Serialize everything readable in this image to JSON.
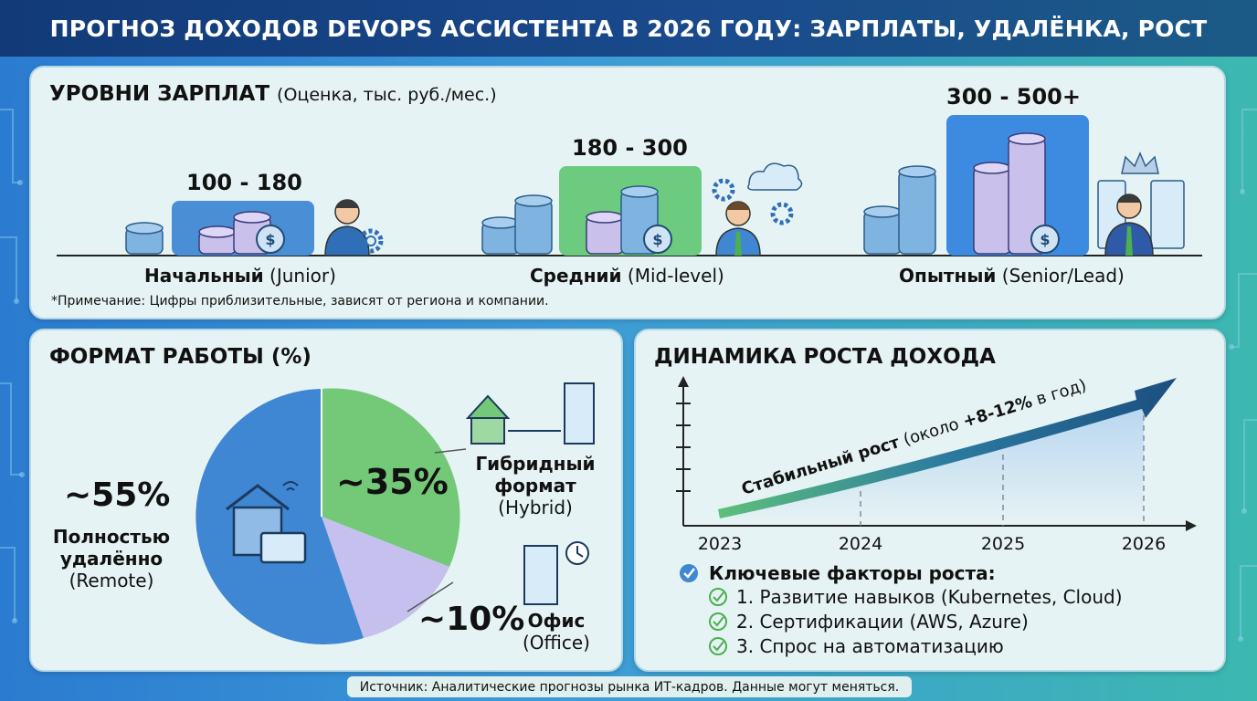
{
  "title": "ПРОГНОЗ ДОХОДОВ DEVOPS АССИСТЕНТА В 2026 ГОДУ: ЗАРПЛАТЫ, УДАЛЁНКА, РОСТ",
  "colors": {
    "junior": "#4a8fd6",
    "mid": "#6ccb7e",
    "senior": "#3d8be0",
    "remote": "#3f86d3",
    "hybrid": "#73c978",
    "office": "#c5c0ee",
    "arrow": "#1c5a80"
  },
  "salary": {
    "title": "УРОВНИ ЗАРПЛАТ",
    "subtitle": "(Оценка, тыс. руб./мес.)",
    "levels": [
      {
        "name": "Начальный",
        "name_en": "(Junior)",
        "range": "100 - 180"
      },
      {
        "name": "Средний",
        "name_en": "(Mid-level)",
        "range": "180 - 300"
      },
      {
        "name": "Опытный",
        "name_en": "(Senior/Lead)",
        "range": "300 - 500+"
      }
    ],
    "note": "*Примечание: Цифры приблизительные, зависят от региона и компании."
  },
  "work_format": {
    "title": "ФОРМАТ РАБОТЫ (%)",
    "remote": {
      "pct": "~55%",
      "line1": "Полностью",
      "line2": "удалённо",
      "en": "(Remote)"
    },
    "hybrid": {
      "pct": "~35%",
      "line1": "Гибридный",
      "line2": "формат",
      "en": "(Hybrid)"
    },
    "office": {
      "pct": "~10%",
      "line1": "Офис",
      "en": "(Office)"
    }
  },
  "growth": {
    "title": "ДИНАМИКА РОСТА ДОХОДА",
    "arrow_bold": "Стабильный рост",
    "arrow_normal": " (около ",
    "arrow_pct": "+8-12%",
    "arrow_tail": " в год)",
    "years": [
      "2023",
      "2024",
      "2025",
      "2026"
    ],
    "factors_title": "Ключевые факторы роста:",
    "factors": [
      "1. Развитие навыков (Kubernetes, Cloud)",
      "2. Сертификации (AWS, Azure)",
      "3. Спрос на автоматизацию"
    ]
  },
  "chart_data": [
    {
      "type": "bar",
      "title": "УРОВНИ ЗАРПЛАТ",
      "subtitle": "(Оценка, тыс. руб./мес.)",
      "categories": [
        "Начальный (Junior)",
        "Средний (Mid-level)",
        "Опытный (Senior/Lead)"
      ],
      "ranges": [
        [
          100,
          180
        ],
        [
          180,
          300
        ],
        [
          300,
          500
        ]
      ],
      "labels": [
        "100 - 180",
        "180 - 300",
        "300 - 500+"
      ]
    },
    {
      "type": "pie",
      "title": "ФОРМАТ РАБОТЫ (%)",
      "categories": [
        "Полностью удалённо (Remote)",
        "Гибридный формат (Hybrid)",
        "Офис (Office)"
      ],
      "values": [
        55,
        35,
        10
      ]
    },
    {
      "type": "line",
      "title": "ДИНАМИКА РОСТА ДОХОДА",
      "x": [
        "2023",
        "2024",
        "2025",
        "2026"
      ],
      "annotation": "Стабильный рост (около +8-12% в год)"
    }
  ],
  "source": "Источник: Аналитические прогнозы рынка ИТ-кадров. Данные могут меняться."
}
